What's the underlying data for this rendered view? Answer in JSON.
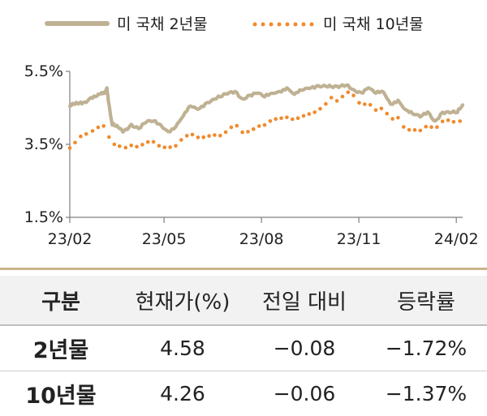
{
  "chart_data": {
    "type": "line",
    "yticks": [
      "5.5%",
      "3.5%",
      "1.5%"
    ],
    "ylim": [
      1.5,
      5.5
    ],
    "xticks": [
      "23/02",
      "23/05",
      "23/08",
      "23/11",
      "24/02"
    ],
    "grid": false,
    "legend_position": "top",
    "series": [
      {
        "name": "미 국채 2년물",
        "style": "solid",
        "color": "#bfb193",
        "x": [
          "2023-02-01",
          "2023-02-06",
          "2023-02-10",
          "2023-02-15",
          "2023-02-21",
          "2023-02-27",
          "2023-03-02",
          "2023-03-06",
          "2023-03-08",
          "2023-03-10",
          "2023-03-13",
          "2023-03-15",
          "2023-03-20",
          "2023-03-24",
          "2023-03-31",
          "2023-04-07",
          "2023-04-14",
          "2023-04-21",
          "2023-04-28",
          "2023-05-05",
          "2023-05-12",
          "2023-05-19",
          "2023-05-26",
          "2023-06-02",
          "2023-06-09",
          "2023-06-16",
          "2023-06-23",
          "2023-06-30",
          "2023-07-07",
          "2023-07-14",
          "2023-07-21",
          "2023-07-28",
          "2023-08-04",
          "2023-08-11",
          "2023-08-18",
          "2023-08-25",
          "2023-09-01",
          "2023-09-08",
          "2023-09-15",
          "2023-09-22",
          "2023-09-29",
          "2023-10-06",
          "2023-10-13",
          "2023-10-20",
          "2023-10-27",
          "2023-11-03",
          "2023-11-10",
          "2023-11-17",
          "2023-11-24",
          "2023-12-01",
          "2023-12-08",
          "2023-12-15",
          "2023-12-22",
          "2023-12-29",
          "2024-01-05",
          "2024-01-12",
          "2024-01-19",
          "2024-01-26",
          "2024-02-02",
          "2024-02-07"
        ],
        "values": [
          4.55,
          4.6,
          4.63,
          4.66,
          4.78,
          4.83,
          4.88,
          4.9,
          5.05,
          4.6,
          4.03,
          4.02,
          3.93,
          3.86,
          4.05,
          3.93,
          4.1,
          4.14,
          4.03,
          3.85,
          3.98,
          4.27,
          4.55,
          4.46,
          4.62,
          4.73,
          4.8,
          4.88,
          4.95,
          4.75,
          4.85,
          4.9,
          4.8,
          4.9,
          4.95,
          5.05,
          4.87,
          4.98,
          5.03,
          5.1,
          5.12,
          5.08,
          5.06,
          5.12,
          5.0,
          4.92,
          5.05,
          4.9,
          4.94,
          4.6,
          4.71,
          4.45,
          4.33,
          4.25,
          4.39,
          4.14,
          4.38,
          4.36,
          4.37,
          4.58
        ]
      },
      {
        "name": "미 국채 10년물",
        "style": "dotted",
        "color": "#f08a2c",
        "x": [
          "2023-02-01",
          "2023-02-06",
          "2023-02-10",
          "2023-02-15",
          "2023-02-21",
          "2023-02-27",
          "2023-03-02",
          "2023-03-06",
          "2023-03-08",
          "2023-03-10",
          "2023-03-13",
          "2023-03-15",
          "2023-03-20",
          "2023-03-24",
          "2023-03-31",
          "2023-04-07",
          "2023-04-14",
          "2023-04-21",
          "2023-04-28",
          "2023-05-05",
          "2023-05-12",
          "2023-05-19",
          "2023-05-26",
          "2023-06-02",
          "2023-06-09",
          "2023-06-16",
          "2023-06-23",
          "2023-06-30",
          "2023-07-07",
          "2023-07-14",
          "2023-07-21",
          "2023-07-28",
          "2023-08-04",
          "2023-08-11",
          "2023-08-18",
          "2023-08-25",
          "2023-09-01",
          "2023-09-08",
          "2023-09-15",
          "2023-09-22",
          "2023-09-29",
          "2023-10-06",
          "2023-10-13",
          "2023-10-20",
          "2023-10-27",
          "2023-11-03",
          "2023-11-10",
          "2023-11-17",
          "2023-11-24",
          "2023-12-01",
          "2023-12-08",
          "2023-12-15",
          "2023-12-22",
          "2023-12-29",
          "2024-01-05",
          "2024-01-12",
          "2024-01-19",
          "2024-01-26",
          "2024-02-02",
          "2024-02-07"
        ],
        "values": [
          3.4,
          3.55,
          3.67,
          3.8,
          3.88,
          3.92,
          4.0,
          3.97,
          3.98,
          3.7,
          3.55,
          3.5,
          3.45,
          3.38,
          3.47,
          3.4,
          3.52,
          3.57,
          3.42,
          3.45,
          3.46,
          3.67,
          3.8,
          3.69,
          3.75,
          3.77,
          3.74,
          3.84,
          4.05,
          3.83,
          3.84,
          3.96,
          4.03,
          4.16,
          4.25,
          4.24,
          4.18,
          4.26,
          4.33,
          4.44,
          4.57,
          4.78,
          4.63,
          4.92,
          4.84,
          4.57,
          4.62,
          4.44,
          4.47,
          4.22,
          4.23,
          3.92,
          3.9,
          3.88,
          4.05,
          3.94,
          4.13,
          4.14,
          4.02,
          4.26
        ]
      }
    ]
  },
  "table": {
    "headers": [
      "구분",
      "현재가(%)",
      "전일 대비",
      "등락률"
    ],
    "rows": [
      {
        "name": "2년물",
        "price": "4.58",
        "change": "−0.08",
        "rate": "−1.72%"
      },
      {
        "name": "10년물",
        "price": "4.26",
        "change": "−0.06",
        "rate": "−1.37%"
      }
    ]
  }
}
